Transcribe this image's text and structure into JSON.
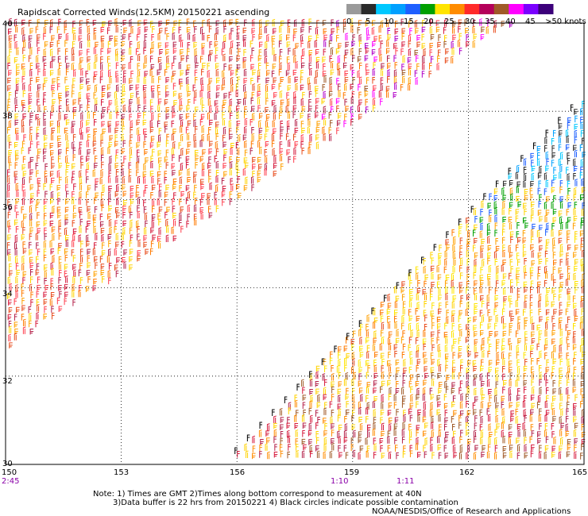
{
  "title": "Rapidscat Corrected Winds(12.5KM) 20150221 ascending",
  "map": {
    "latitudes": [
      "40",
      "38",
      "36",
      "34",
      "32",
      "30"
    ],
    "longitudes": [
      "150",
      "153",
      "156",
      "159",
      "162",
      "165"
    ],
    "lon_range": [
      150,
      165
    ],
    "lat_range": [
      30,
      40
    ]
  },
  "pass_times": [
    "2:45",
    "1:10",
    "1:11"
  ],
  "colorbar": {
    "labels": [
      "0",
      "5",
      "10",
      "15",
      "20",
      "25",
      "30",
      "35",
      "40",
      "45",
      ">50 knots"
    ],
    "colors": [
      "#9a9a9a",
      "#2a2a2a",
      "#00c8ff",
      "#00a0ff",
      "#1e5fff",
      "#00a000",
      "#ffe400",
      "#ff8c00",
      "#ff2a2a",
      "#b4005a",
      "#a05a28",
      "#ff00ff",
      "#7a00ff",
      "#3c007a"
    ]
  },
  "notes": {
    "line1": "Note: 1) Times are GMT 2)Times along bottom correspond to measurement at 40N",
    "line2": "3)Data buffer is 22 hrs from 20150221 4) Black circles indicate possible contamination",
    "credit": "NOAA/NESDIS/Office of Research and Applications"
  }
}
